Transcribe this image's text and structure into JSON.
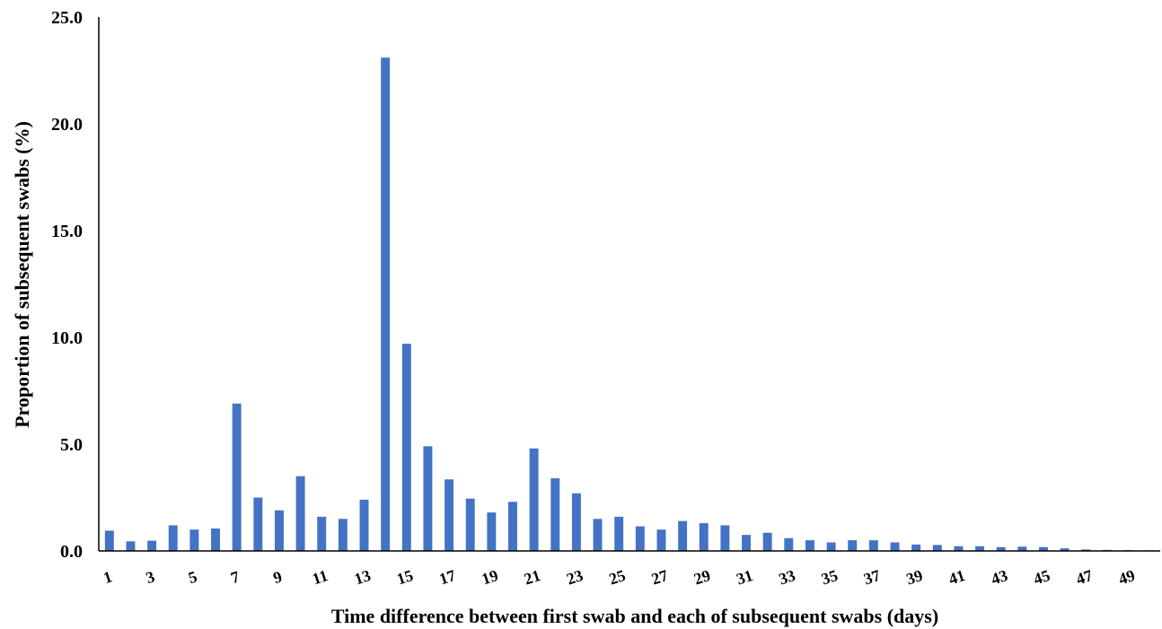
{
  "chart_data": {
    "type": "bar",
    "title": "",
    "xlabel": "Time difference between first swab and each of subsequent swabs (days)",
    "ylabel": "Proportion of subsequent swabs (%)",
    "ylim": [
      0,
      25
    ],
    "yticks": [
      "0.0",
      "5.0",
      "10.0",
      "15.0",
      "20.0",
      "25.0"
    ],
    "grid": false,
    "legend": "none",
    "bar_color": "#4472C4",
    "categories": [
      1,
      2,
      3,
      4,
      5,
      6,
      7,
      8,
      9,
      10,
      11,
      12,
      13,
      14,
      15,
      16,
      17,
      18,
      19,
      20,
      21,
      22,
      23,
      24,
      25,
      26,
      27,
      28,
      29,
      30,
      31,
      32,
      33,
      34,
      35,
      36,
      37,
      38,
      39,
      40,
      41,
      42,
      43,
      44,
      45,
      46,
      47,
      48,
      49,
      50
    ],
    "x_tick_labels": [
      "1",
      "3",
      "5",
      "7",
      "9",
      "11",
      "13",
      "15",
      "17",
      "19",
      "21",
      "23",
      "25",
      "27",
      "29",
      "31",
      "33",
      "35",
      "37",
      "39",
      "41",
      "43",
      "45",
      "47",
      "49"
    ],
    "values": [
      0.95,
      0.45,
      0.48,
      1.2,
      1.0,
      1.05,
      6.9,
      2.5,
      1.9,
      3.5,
      1.6,
      1.5,
      2.4,
      23.1,
      9.7,
      4.9,
      3.35,
      2.45,
      1.8,
      2.3,
      4.8,
      3.4,
      2.7,
      1.5,
      1.6,
      1.15,
      1.0,
      1.4,
      1.3,
      1.2,
      0.75,
      0.85,
      0.6,
      0.5,
      0.4,
      0.5,
      0.5,
      0.4,
      0.3,
      0.28,
      0.22,
      0.22,
      0.18,
      0.2,
      0.18,
      0.12,
      0.07,
      0.05,
      0.04,
      0.03
    ]
  }
}
